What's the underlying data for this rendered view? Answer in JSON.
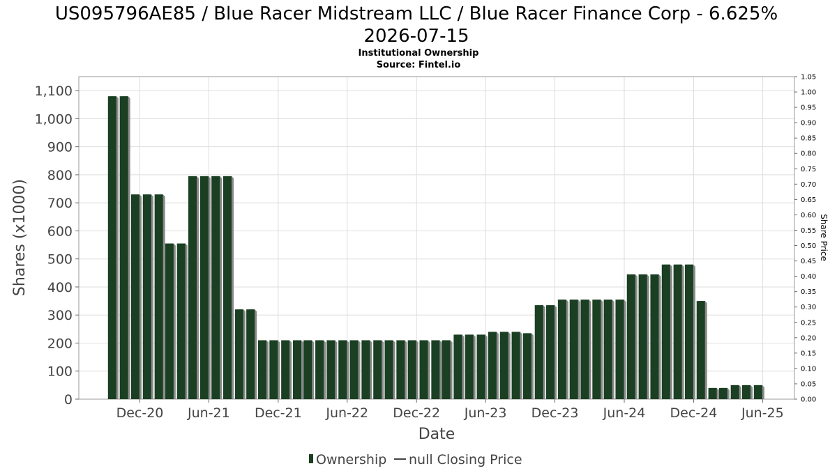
{
  "chart_data": {
    "type": "bar",
    "title": "US095796AE85 / Blue Racer Midstream LLC / Blue Racer Finance Corp - 6.625% 2026-07-15",
    "title_lines": [
      "US095796AE85 / Blue Racer Midstream LLC / Blue Racer Finance Corp - 6.625%",
      "2026-07-15"
    ],
    "subtitle": "Institutional Ownership",
    "source": "Source: Fintel.io",
    "xlabel": "Date",
    "ylabel": "Shares (x1000)",
    "y2label": "Share Price",
    "ylim": [
      0,
      1150
    ],
    "y2lim": [
      0,
      1.05
    ],
    "y_ticks": [
      0,
      100,
      200,
      300,
      400,
      500,
      600,
      700,
      800,
      900,
      1000,
      1100
    ],
    "y_tick_labels": [
      "0",
      "100",
      "200",
      "300",
      "400",
      "500",
      "600",
      "700",
      "800",
      "900",
      "1,000",
      "1,100"
    ],
    "y2_ticks": [
      0,
      0.05,
      0.1,
      0.15,
      0.2,
      0.25,
      0.3,
      0.35,
      0.4,
      0.45,
      0.5,
      0.55,
      0.6,
      0.65,
      0.7,
      0.75,
      0.8,
      0.85,
      0.9,
      0.95,
      1.0,
      1.05
    ],
    "y2_tick_labels": [
      "0.00",
      "0.05",
      "0.10",
      "0.15",
      "0.20",
      "0.25",
      "0.30",
      "0.35",
      "0.40",
      "0.45",
      "0.50",
      "0.55",
      "0.60",
      "0.65",
      "0.70",
      "0.75",
      "0.80",
      "0.85",
      "0.90",
      "0.95",
      "1.00",
      "1.05"
    ],
    "x_range": [
      "2020-06-23",
      "2025-08-24"
    ],
    "x_ticks": [
      {
        "date": "2020-12-01",
        "label": "Dec-20"
      },
      {
        "date": "2021-06-01",
        "label": "Jun-21"
      },
      {
        "date": "2021-12-01",
        "label": "Dec-21"
      },
      {
        "date": "2022-06-01",
        "label": "Jun-22"
      },
      {
        "date": "2022-12-01",
        "label": "Dec-22"
      },
      {
        "date": "2023-06-01",
        "label": "Jun-23"
      },
      {
        "date": "2023-12-01",
        "label": "Dec-23"
      },
      {
        "date": "2024-06-01",
        "label": "Jun-24"
      },
      {
        "date": "2024-12-01",
        "label": "Dec-24"
      },
      {
        "date": "2025-06-01",
        "label": "Jun-25"
      }
    ],
    "grid": true,
    "legend_position": "bottom",
    "series": [
      {
        "name": "Ownership",
        "color": "#1a3f22",
        "x": [
          "2020-09-30",
          "2020-10-31",
          "2020-11-30",
          "2020-12-31",
          "2021-01-31",
          "2021-02-28",
          "2021-03-31",
          "2021-04-30",
          "2021-05-31",
          "2021-06-30",
          "2021-07-31",
          "2021-08-31",
          "2021-09-30",
          "2021-10-31",
          "2021-11-30",
          "2021-12-31",
          "2022-01-31",
          "2022-02-28",
          "2022-03-31",
          "2022-04-30",
          "2022-05-31",
          "2022-06-30",
          "2022-07-31",
          "2022-08-31",
          "2022-09-30",
          "2022-10-31",
          "2022-11-30",
          "2022-12-31",
          "2023-01-31",
          "2023-02-28",
          "2023-03-31",
          "2023-04-30",
          "2023-05-31",
          "2023-06-30",
          "2023-07-31",
          "2023-08-31",
          "2023-09-30",
          "2023-10-31",
          "2023-11-30",
          "2023-12-31",
          "2024-01-31",
          "2024-02-29",
          "2024-03-31",
          "2024-04-30",
          "2024-05-31",
          "2024-06-30",
          "2024-07-31",
          "2024-08-31",
          "2024-09-30",
          "2024-10-31",
          "2024-11-30",
          "2024-12-31",
          "2025-01-31",
          "2025-02-28",
          "2025-03-31",
          "2025-04-30",
          "2025-05-31"
        ],
        "values": [
          1080,
          1080,
          730,
          730,
          730,
          555,
          555,
          795,
          795,
          795,
          795,
          320,
          320,
          210,
          210,
          210,
          210,
          210,
          210,
          210,
          210,
          210,
          210,
          210,
          210,
          210,
          210,
          210,
          210,
          210,
          230,
          230,
          230,
          240,
          240,
          240,
          235,
          335,
          335,
          355,
          355,
          355,
          355,
          355,
          355,
          445,
          445,
          445,
          480,
          480,
          480,
          350,
          40,
          40,
          50,
          50,
          50
        ]
      },
      {
        "name": "null Closing Price",
        "color": "#444444",
        "x": [],
        "values": []
      }
    ]
  }
}
